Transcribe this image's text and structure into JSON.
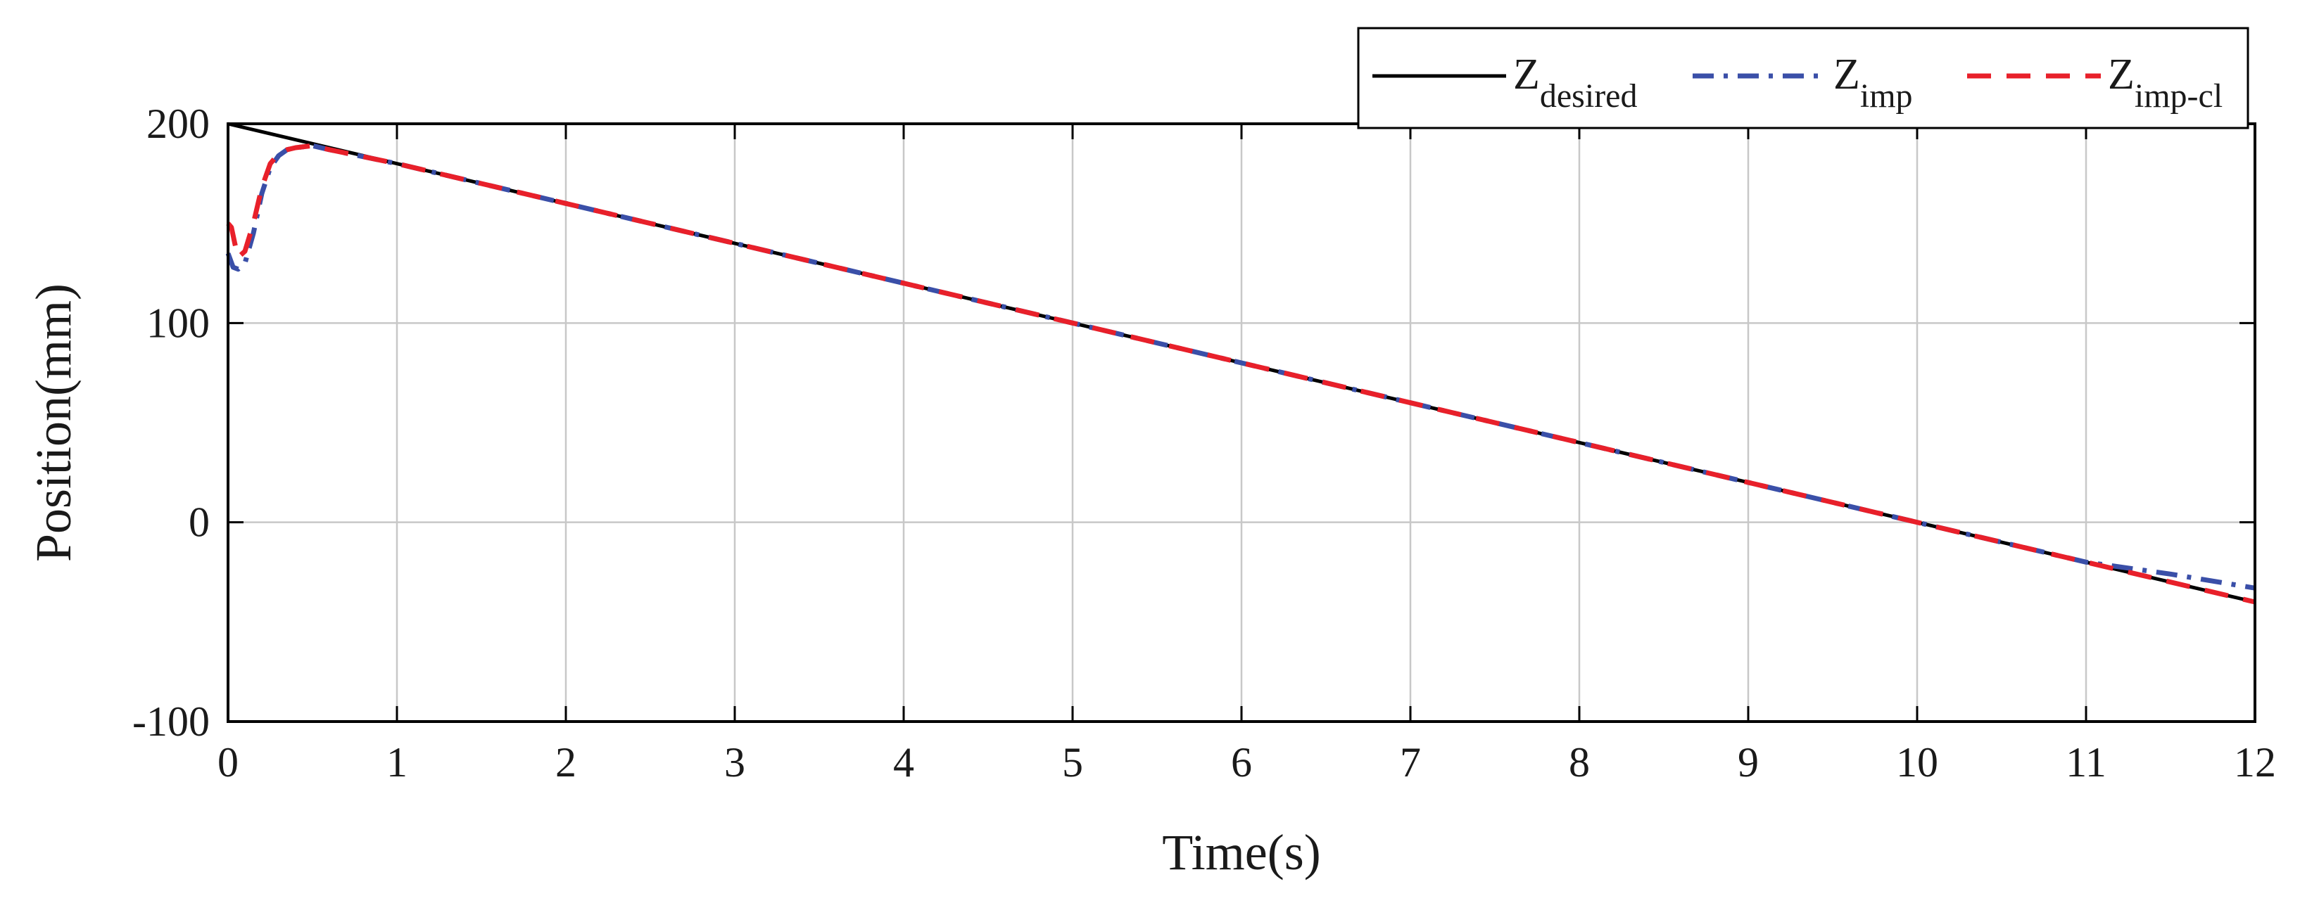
{
  "chart_data": {
    "type": "line",
    "xlabel": "Time(s)",
    "ylabel": "Position(mm)",
    "xlim": [
      0,
      12
    ],
    "ylim": [
      -100,
      200
    ],
    "xticks": [
      0,
      1,
      2,
      3,
      4,
      5,
      6,
      7,
      8,
      9,
      10,
      11,
      12
    ],
    "yticks": [
      -100,
      0,
      100,
      200
    ],
    "xtick_labels": [
      "0",
      "1",
      "2",
      "3",
      "4",
      "5",
      "6",
      "7",
      "8",
      "9",
      "10",
      "11",
      "12"
    ],
    "ytick_labels": [
      "-100",
      "0",
      "100",
      "200"
    ],
    "grid": true,
    "legend_position": "top-right",
    "series": [
      {
        "name": "Zdesired",
        "legend_main": "Z",
        "legend_sub": "desired",
        "color": "#000000",
        "style": "solid",
        "x": [
          0,
          12
        ],
        "y": [
          200,
          -40
        ]
      },
      {
        "name": "Zimp",
        "legend_main": "Z",
        "legend_sub": "imp",
        "color": "#3a4fa8",
        "style": "dash-dot",
        "x": [
          0,
          0.03,
          0.06,
          0.1,
          0.15,
          0.2,
          0.25,
          0.3,
          0.35,
          0.4,
          0.5,
          0.6,
          1,
          2,
          3,
          4,
          5,
          6,
          7,
          8,
          9,
          10,
          11,
          11.5,
          12
        ],
        "y": [
          135,
          128,
          127,
          130,
          145,
          165,
          178,
          184,
          187,
          188,
          189,
          187,
          180,
          160,
          140,
          120,
          100,
          80,
          60,
          40,
          20,
          0,
          -20,
          -26,
          -33
        ]
      },
      {
        "name": "Zimp-cl",
        "legend_main": "Z",
        "legend_sub": "imp-cl",
        "color": "#e8202a",
        "style": "dashed",
        "x": [
          0,
          0.02,
          0.04,
          0.06,
          0.1,
          0.15,
          0.2,
          0.25,
          0.3,
          0.35,
          0.4,
          0.5,
          0.6,
          1,
          2,
          3,
          4,
          5,
          6,
          7,
          8,
          9,
          10,
          11,
          12
        ],
        "y": [
          150,
          148,
          140,
          133,
          136,
          150,
          168,
          180,
          185,
          187,
          188,
          189,
          187,
          180,
          160,
          140,
          120,
          100,
          80,
          60,
          40,
          20,
          0,
          -20,
          -40
        ]
      }
    ]
  }
}
